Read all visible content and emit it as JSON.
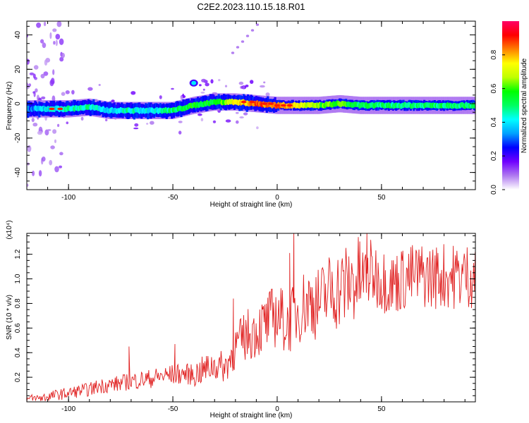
{
  "title": "C2E2.2023.110.15.18.R01",
  "chart_data": [
    {
      "type": "heatmap",
      "xlabel": "Height of straight line (km)",
      "ylabel": "Frequency (Hz)",
      "xlim": [
        -120,
        95
      ],
      "ylim": [
        -50,
        48
      ],
      "x_ticks": [
        "-100",
        "-50",
        "0",
        "50"
      ],
      "y_ticks": [
        "-40",
        "-20",
        "0",
        "20",
        "40"
      ],
      "colorbar": {
        "label": "Normalized spectral amplitude",
        "range": [
          0,
          1
        ],
        "ticks": [
          "0.0",
          "0.2",
          "0.4",
          "0.6",
          "0.8"
        ],
        "colormap": [
          "#ffffff",
          "#b07af0",
          "#7000ff",
          "#0000ff",
          "#00a0ff",
          "#00ffff",
          "#00ff60",
          "#00ff00",
          "#c0ff00",
          "#ffff00",
          "#ff8000",
          "#ff0000",
          "#ff0066"
        ]
      },
      "ridge": {
        "x": [
          -120,
          -110,
          -100,
          -90,
          -80,
          -70,
          -60,
          -50,
          -40,
          -30,
          -20,
          -10,
          0,
          10,
          20,
          30,
          40,
          50,
          60,
          70,
          80,
          95
        ],
        "freq": [
          -3,
          -3,
          -3,
          -2,
          -4,
          -4,
          -4,
          -4,
          -1,
          1,
          1,
          0,
          -1,
          -1,
          -1,
          0,
          -1,
          -1,
          -1,
          -1,
          -1,
          -1
        ],
        "amplitude": [
          0.3,
          0.4,
          0.45,
          0.45,
          0.4,
          0.45,
          0.4,
          0.5,
          0.55,
          0.55,
          0.75,
          0.85,
          0.85,
          0.75,
          0.6,
          0.6,
          0.5,
          0.5,
          0.5,
          0.5,
          0.5,
          0.5
        ]
      },
      "features": [
        {
          "x": -40,
          "freq": 12,
          "amplitude": 0.4
        }
      ]
    },
    {
      "type": "line",
      "xlabel": "Height of straight line (km)",
      "ylabel": "SNR (10 * v/v)",
      "y_multiplier": "(x10⁴)",
      "xlim": [
        -120,
        95
      ],
      "ylim": [
        0,
        1.37
      ],
      "x_ticks": [
        "-100",
        "-50",
        "0",
        "50"
      ],
      "y_ticks": [
        "0.2",
        "0.4",
        "0.6",
        "0.8",
        "1.0",
        "1.2"
      ],
      "line_color": "#e02020",
      "series": [
        {
          "x": [
            -120,
            -115,
            -110,
            -105,
            -100,
            -95,
            -90,
            -85,
            -80,
            -75,
            -70,
            -65,
            -60,
            -55,
            -50,
            -45,
            -40,
            -35,
            -30,
            -25,
            -20,
            -15,
            -10,
            -5,
            0,
            5,
            10,
            15,
            20,
            25,
            30,
            35,
            40,
            45,
            50,
            55,
            60,
            65,
            70,
            75,
            80,
            85,
            90,
            95
          ],
          "values": [
            0.02,
            0.03,
            0.04,
            0.06,
            0.07,
            0.09,
            0.1,
            0.13,
            0.14,
            0.15,
            0.17,
            0.18,
            0.19,
            0.21,
            0.22,
            0.23,
            0.22,
            0.26,
            0.3,
            0.28,
            0.44,
            0.54,
            0.58,
            0.64,
            0.72,
            0.62,
            0.75,
            0.82,
            0.8,
            0.9,
            0.92,
            0.97,
            1.0,
            1.05,
            1.0,
            0.96,
            1.0,
            1.02,
            1.03,
            1.02,
            1.03,
            1.02,
            1.03,
            1.03
          ],
          "spikes": [
            {
              "x": -71,
              "value": 0.45
            },
            {
              "x": -49,
              "value": 0.47
            },
            {
              "x": -21,
              "value": 0.84
            },
            {
              "x": 6,
              "value": 1.21
            },
            {
              "x": 8,
              "value": 1.38
            },
            {
              "x": 43,
              "value": 1.38
            }
          ]
        }
      ]
    }
  ]
}
